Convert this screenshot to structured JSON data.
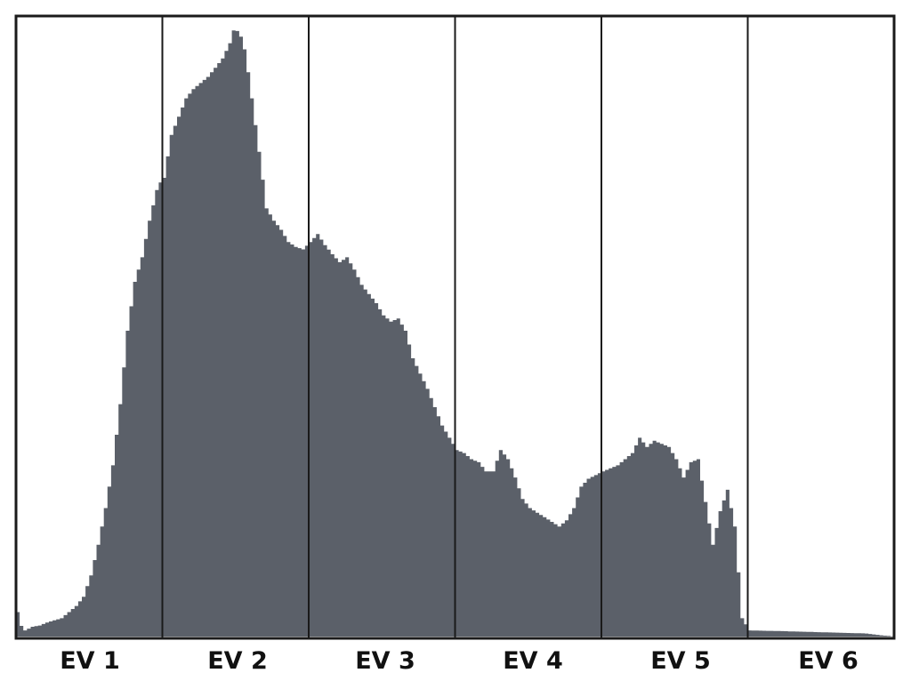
{
  "chart_data": {
    "type": "area",
    "title": "",
    "xlabel": "",
    "ylabel": "",
    "grid": "vertical zone dividers",
    "legend": "none",
    "colors": {
      "fill": "#5b6069",
      "frame": "#1a1a1a",
      "background": "#ffffff"
    },
    "categories": [
      "EV 1",
      "EV 2",
      "EV 3",
      "EV 4",
      "EV 5",
      "EV 6"
    ],
    "xlim": [
      0,
      6
    ],
    "ylim": [
      0,
      1
    ],
    "series": [
      {
        "points": [
          [
            0.0,
            0.04
          ],
          [
            0.02,
            0.0
          ],
          [
            0.03,
            0.035
          ],
          [
            0.05,
            0.01
          ],
          [
            0.1,
            0.016
          ],
          [
            0.15,
            0.018
          ],
          [
            0.2,
            0.023
          ],
          [
            0.3,
            0.03
          ],
          [
            0.4,
            0.05
          ],
          [
            0.45,
            0.065
          ],
          [
            0.5,
            0.1
          ],
          [
            0.55,
            0.15
          ],
          [
            0.6,
            0.21
          ],
          [
            0.65,
            0.28
          ],
          [
            0.7,
            0.38
          ],
          [
            0.75,
            0.5
          ],
          [
            0.8,
            0.58
          ],
          [
            0.85,
            0.62
          ],
          [
            0.9,
            0.68
          ],
          [
            0.95,
            0.73
          ],
          [
            0.98,
            0.745
          ],
          [
            1.0,
            0.75
          ],
          [
            1.05,
            0.82
          ],
          [
            1.1,
            0.85
          ],
          [
            1.15,
            0.88
          ],
          [
            1.2,
            0.895
          ],
          [
            1.3,
            0.915
          ],
          [
            1.4,
            0.945
          ],
          [
            1.45,
            0.97
          ],
          [
            1.48,
            0.995
          ],
          [
            1.52,
            0.985
          ],
          [
            1.55,
            0.96
          ],
          [
            1.58,
            0.915
          ],
          [
            1.62,
            0.845
          ],
          [
            1.66,
            0.775
          ],
          [
            1.7,
            0.7
          ],
          [
            1.75,
            0.68
          ],
          [
            1.8,
            0.665
          ],
          [
            1.85,
            0.645
          ],
          [
            1.9,
            0.637
          ],
          [
            1.95,
            0.633
          ],
          [
            2.0,
            0.645
          ],
          [
            2.05,
            0.658
          ],
          [
            2.1,
            0.64
          ],
          [
            2.15,
            0.625
          ],
          [
            2.2,
            0.612
          ],
          [
            2.25,
            0.62
          ],
          [
            2.3,
            0.6
          ],
          [
            2.35,
            0.575
          ],
          [
            2.4,
            0.56
          ],
          [
            2.45,
            0.545
          ],
          [
            2.5,
            0.525
          ],
          [
            2.55,
            0.515
          ],
          [
            2.6,
            0.52
          ],
          [
            2.65,
            0.5
          ],
          [
            2.7,
            0.455
          ],
          [
            2.75,
            0.43
          ],
          [
            2.8,
            0.405
          ],
          [
            2.85,
            0.375
          ],
          [
            2.9,
            0.345
          ],
          [
            2.95,
            0.325
          ],
          [
            3.0,
            0.305
          ],
          [
            3.05,
            0.3
          ],
          [
            3.1,
            0.29
          ],
          [
            3.15,
            0.285
          ],
          [
            3.2,
            0.27
          ],
          [
            3.25,
            0.27
          ],
          [
            3.3,
            0.305
          ],
          [
            3.35,
            0.29
          ],
          [
            3.4,
            0.26
          ],
          [
            3.45,
            0.225
          ],
          [
            3.5,
            0.21
          ],
          [
            3.6,
            0.195
          ],
          [
            3.7,
            0.18
          ],
          [
            3.75,
            0.19
          ],
          [
            3.8,
            0.21
          ],
          [
            3.85,
            0.245
          ],
          [
            3.9,
            0.258
          ],
          [
            4.0,
            0.27
          ],
          [
            4.1,
            0.28
          ],
          [
            4.2,
            0.3
          ],
          [
            4.25,
            0.325
          ],
          [
            4.3,
            0.31
          ],
          [
            4.35,
            0.32
          ],
          [
            4.4,
            0.315
          ],
          [
            4.45,
            0.31
          ],
          [
            4.5,
            0.29
          ],
          [
            4.55,
            0.26
          ],
          [
            4.6,
            0.285
          ],
          [
            4.65,
            0.29
          ],
          [
            4.7,
            0.22
          ],
          [
            4.75,
            0.15
          ],
          [
            4.8,
            0.205
          ],
          [
            4.85,
            0.24
          ],
          [
            4.9,
            0.18
          ],
          [
            4.95,
            0.03
          ],
          [
            5.0,
            0.01
          ],
          [
            5.2,
            0.009
          ],
          [
            5.5,
            0.007
          ],
          [
            5.8,
            0.005
          ],
          [
            5.9,
            0.002
          ],
          [
            6.0,
            0.0
          ]
        ]
      }
    ]
  }
}
